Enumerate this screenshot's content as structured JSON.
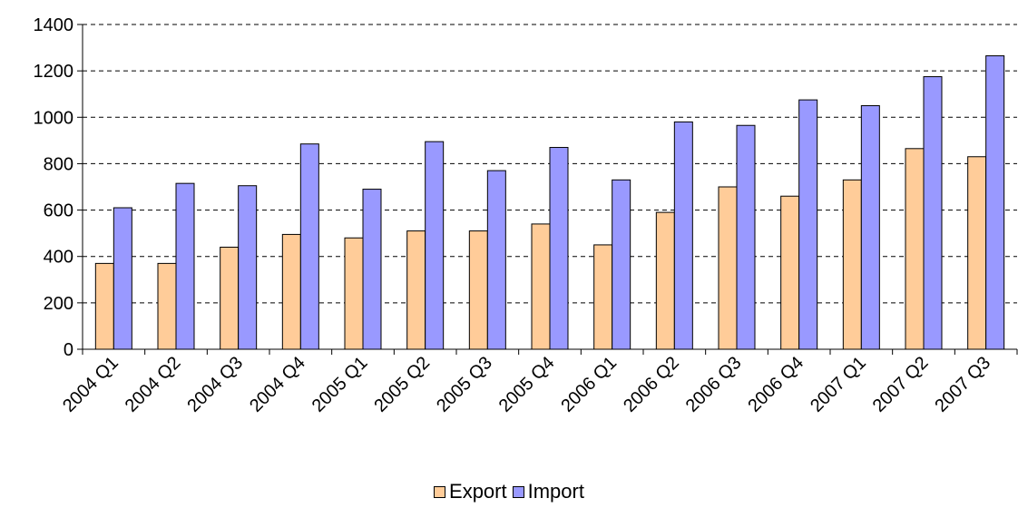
{
  "chart_data": {
    "type": "bar",
    "categories": [
      "2004 Q1",
      "2004 Q2",
      "2004 Q3",
      "2004 Q4",
      "2005 Q1",
      "2005 Q2",
      "2005 Q3",
      "2005 Q4",
      "2006 Q1",
      "2006 Q2",
      "2006 Q3",
      "2006 Q4",
      "2007 Q1",
      "2007 Q2",
      "2007 Q3"
    ],
    "series": [
      {
        "name": "Export",
        "color": "#FFCC99",
        "values": [
          370,
          370,
          440,
          495,
          480,
          510,
          510,
          540,
          450,
          590,
          700,
          660,
          730,
          865,
          830
        ]
      },
      {
        "name": "Import",
        "color": "#9999FF",
        "values": [
          610,
          715,
          705,
          885,
          690,
          895,
          770,
          870,
          730,
          980,
          965,
          1075,
          1050,
          1175,
          1265
        ]
      }
    ],
    "yticks": [
      "0",
      "200",
      "400",
      "600",
      "800",
      "1000",
      "1200",
      "1400"
    ],
    "ylim": [
      0,
      1400
    ],
    "grid": true,
    "legend_position": "bottom"
  }
}
